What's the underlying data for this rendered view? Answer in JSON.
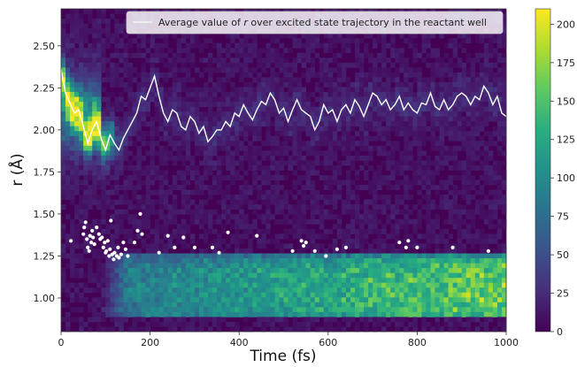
{
  "chart_data": {
    "type": "heatmap",
    "title": "",
    "xlabel": "Time (fs)",
    "ylabel": "r (Å)",
    "xlim": [
      0,
      1000
    ],
    "ylim": [
      0.8,
      2.72
    ],
    "xticks": [
      "0",
      "200",
      "400",
      "600",
      "800",
      "1000"
    ],
    "yticks": [
      "1.00",
      "1.25",
      "1.50",
      "1.75",
      "2.00",
      "2.25",
      "2.50"
    ],
    "colorbar": {
      "colormap": "viridis",
      "range": [
        0,
        210
      ],
      "ticks": [
        "0",
        "25",
        "50",
        "75",
        "100",
        "125",
        "150",
        "175",
        "200"
      ]
    },
    "colors": {
      "low": "#440154",
      "mid": "#21918c",
      "high": "#fde725",
      "average_line": "#ffffff",
      "points": "#ffffff"
    },
    "legend": {
      "position": "top-right",
      "entries": [
        {
          "prefix": "Average value of ",
          "italic": "r",
          "suffix": " over excited state trajectory in the reactant well"
        }
      ]
    },
    "series": [
      {
        "name": "Average value of r over excited state trajectory in the reactant well",
        "type": "line",
        "x": [
          0,
          10,
          20,
          30,
          40,
          50,
          60,
          70,
          80,
          90,
          100,
          110,
          120,
          130,
          140,
          150,
          160,
          170,
          180,
          190,
          200,
          210,
          220,
          230,
          240,
          250,
          260,
          270,
          280,
          290,
          300,
          310,
          320,
          330,
          340,
          350,
          360,
          370,
          380,
          390,
          400,
          410,
          420,
          430,
          440,
          450,
          460,
          470,
          480,
          490,
          500,
          510,
          520,
          530,
          540,
          550,
          560,
          570,
          580,
          590,
          600,
          610,
          620,
          630,
          640,
          650,
          660,
          670,
          680,
          690,
          700,
          710,
          720,
          730,
          740,
          750,
          760,
          770,
          780,
          790,
          800,
          810,
          820,
          830,
          840,
          850,
          860,
          870,
          880,
          890,
          900,
          910,
          920,
          930,
          940,
          950,
          960,
          970,
          980,
          990,
          1000
        ],
        "y": [
          2.36,
          2.22,
          2.16,
          2.1,
          2.12,
          2.02,
          1.92,
          2.0,
          2.05,
          1.95,
          1.88,
          1.97,
          1.92,
          1.88,
          1.95,
          2.0,
          2.05,
          2.1,
          2.2,
          2.18,
          2.25,
          2.32,
          2.2,
          2.1,
          2.05,
          2.12,
          2.1,
          2.02,
          2.0,
          2.08,
          2.05,
          1.98,
          2.02,
          1.93,
          1.96,
          2.0,
          2.0,
          2.05,
          2.02,
          2.1,
          2.08,
          2.15,
          2.1,
          2.06,
          2.12,
          2.17,
          2.15,
          2.22,
          2.18,
          2.1,
          2.13,
          2.05,
          2.12,
          2.18,
          2.12,
          2.1,
          2.08,
          2.0,
          2.05,
          2.15,
          2.1,
          2.12,
          2.05,
          2.12,
          2.15,
          2.1,
          2.18,
          2.14,
          2.08,
          2.15,
          2.22,
          2.2,
          2.15,
          2.18,
          2.12,
          2.15,
          2.2,
          2.12,
          2.16,
          2.12,
          2.1,
          2.16,
          2.15,
          2.22,
          2.14,
          2.12,
          2.18,
          2.12,
          2.15,
          2.2,
          2.22,
          2.2,
          2.15,
          2.2,
          2.18,
          2.26,
          2.22,
          2.15,
          2.2,
          2.1,
          2.08
        ]
      },
      {
        "name": "",
        "type": "scatter",
        "x": [
          22,
          50,
          52,
          55,
          58,
          60,
          63,
          65,
          68,
          70,
          72,
          75,
          80,
          85,
          88,
          92,
          95,
          98,
          100,
          102,
          105,
          108,
          110,
          112,
          115,
          118,
          120,
          125,
          128,
          130,
          135,
          140,
          145,
          150,
          165,
          172,
          178,
          182,
          220,
          240,
          255,
          275,
          300,
          340,
          355,
          375,
          440,
          520,
          540,
          545,
          550,
          570,
          595,
          620,
          640,
          760,
          775,
          780,
          800,
          880,
          960
        ],
        "y": [
          1.34,
          1.38,
          1.42,
          1.45,
          1.35,
          1.3,
          1.28,
          1.37,
          1.33,
          1.4,
          1.36,
          1.32,
          1.42,
          1.38,
          1.35,
          1.36,
          1.3,
          1.33,
          1.27,
          1.28,
          1.34,
          1.25,
          1.29,
          1.46,
          1.26,
          1.23,
          1.27,
          1.25,
          1.3,
          1.24,
          1.26,
          1.33,
          1.29,
          1.25,
          1.33,
          1.4,
          1.5,
          1.38,
          1.27,
          1.37,
          1.3,
          1.36,
          1.3,
          1.3,
          1.27,
          1.39,
          1.37,
          1.28,
          1.34,
          1.31,
          1.33,
          1.28,
          1.25,
          1.29,
          1.3,
          1.33,
          1.3,
          1.34,
          1.3,
          1.3,
          1.28
        ]
      }
    ]
  }
}
